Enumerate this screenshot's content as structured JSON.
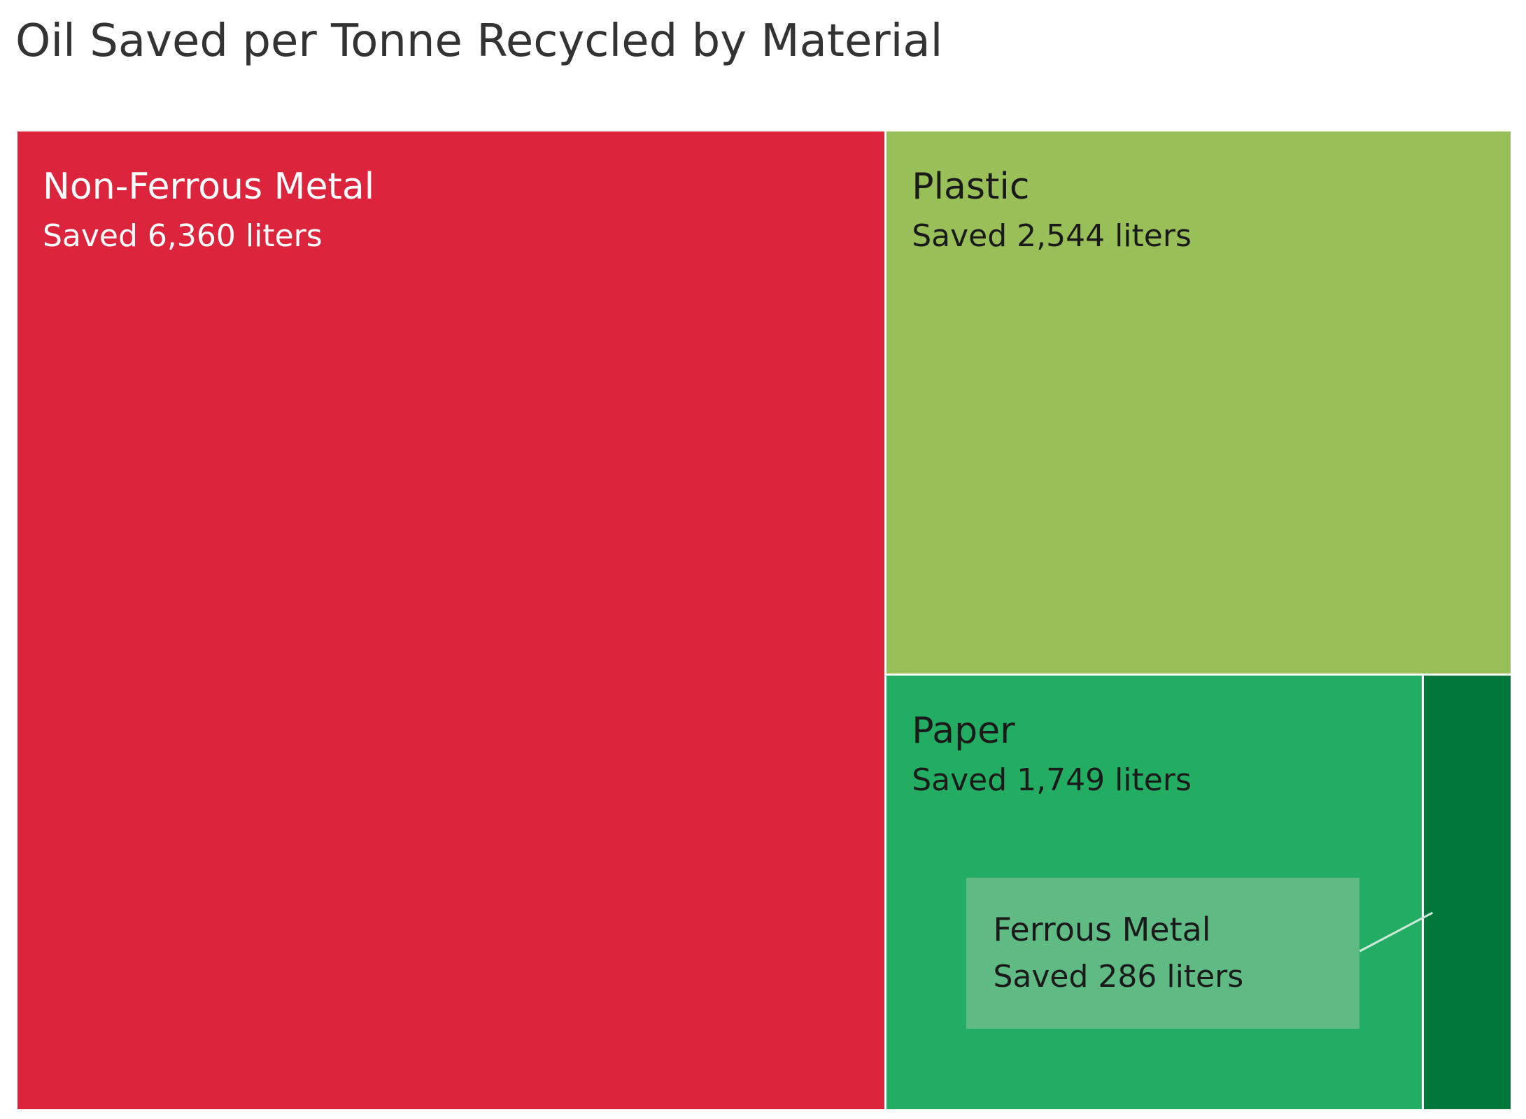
{
  "chart_data": {
    "type": "treemap",
    "title": "Oil Saved per Tonne Recycled by Material",
    "value_prefix": "Saved",
    "unit": "liters",
    "series": [
      {
        "name": "Non-Ferrous Metal",
        "value": 6360,
        "value_label": "Saved 6,360 liters",
        "color": "#dc253c",
        "text_color": "#ffffff"
      },
      {
        "name": "Plastic",
        "value": 2544,
        "value_label": "Saved 2,544 liters",
        "color": "#99c058",
        "text_color": "#1a1a1a"
      },
      {
        "name": "Paper",
        "value": 1749,
        "value_label": "Saved 1,749 liters",
        "color": "#23ad62",
        "text_color": "#1a1a1a"
      },
      {
        "name": "Ferrous Metal",
        "value": 286,
        "value_label": "Saved 286 liters",
        "color": "#01773a",
        "text_color": "#1a1a1a",
        "label_style": "callout",
        "callout_color": "#5fbb83"
      }
    ]
  }
}
